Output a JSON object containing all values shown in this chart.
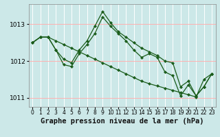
{
  "title": "Graphe pression niveau de la mer (hPa)",
  "bg_color": "#cce8e8",
  "vgrid_color": "#ffffff",
  "hgrid_color": "#ffb0b0",
  "line_color": "#1a5c1a",
  "series": [
    [
      1012.5,
      1012.65,
      1012.65,
      1012.55,
      1012.45,
      1012.35,
      1012.25,
      1012.15,
      1012.05,
      1011.95,
      1011.85,
      1011.75,
      1011.65,
      1011.55,
      1011.45,
      1011.38,
      1011.32,
      1011.26,
      1011.2,
      1011.14,
      1011.08,
      1011.02,
      1011.5,
      1011.65
    ],
    [
      1012.5,
      1012.65,
      1012.65,
      1012.3,
      1011.9,
      1011.85,
      1012.2,
      1012.45,
      1012.75,
      1013.2,
      1012.95,
      1012.75,
      1012.55,
      1012.3,
      1012.1,
      1012.2,
      1012.1,
      1011.7,
      1011.6,
      1011.05,
      1011.35,
      1011.05,
      1011.3,
      1011.65
    ],
    [
      1012.5,
      1012.65,
      1012.65,
      1012.3,
      1012.05,
      1011.95,
      1012.3,
      1012.55,
      1012.95,
      1013.35,
      1013.05,
      1012.8,
      1012.65,
      1012.5,
      1012.35,
      1012.25,
      1012.15,
      1012.0,
      1011.95,
      1011.3,
      1011.45,
      1011.05,
      1011.3,
      1011.65
    ]
  ],
  "xlim": [
    -0.5,
    23.5
  ],
  "ylim": [
    1010.75,
    1013.55
  ],
  "yticks": [
    1011,
    1012,
    1013
  ],
  "xticks": [
    0,
    1,
    2,
    3,
    4,
    5,
    6,
    7,
    8,
    9,
    10,
    11,
    12,
    13,
    14,
    15,
    16,
    17,
    18,
    19,
    20,
    21,
    22,
    23
  ],
  "tick_fontsize": 6.5,
  "label_fontsize": 7.5
}
